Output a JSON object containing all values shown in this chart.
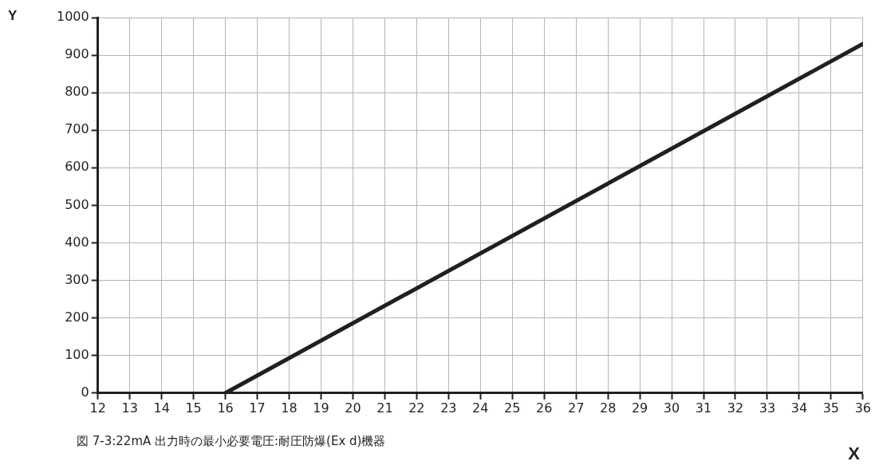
{
  "chart_data": {
    "type": "line",
    "xlabel": "X",
    "ylabel": "Y",
    "annotations": [
      "図 7-3:22mA 出力時の最小必要電圧:耐圧防爆(Ex d)機器"
    ],
    "series": [
      {
        "x": [
          16,
          36
        ],
        "values": [
          0,
          930
        ],
        "color": "#231f20"
      }
    ],
    "xlim": [
      12,
      36
    ],
    "xticks": [
      12,
      13,
      14,
      15,
      16,
      17,
      18,
      19,
      20,
      21,
      22,
      23,
      24,
      25,
      26,
      27,
      28,
      29,
      30,
      31,
      32,
      33,
      34,
      35,
      36
    ],
    "ylim": [
      0,
      1000
    ],
    "yticks": [
      0,
      100,
      200,
      300,
      400,
      500,
      600,
      700,
      800,
      900,
      1000
    ],
    "grid": true,
    "legend": false,
    "marker": "none",
    "line_style": "solid"
  }
}
